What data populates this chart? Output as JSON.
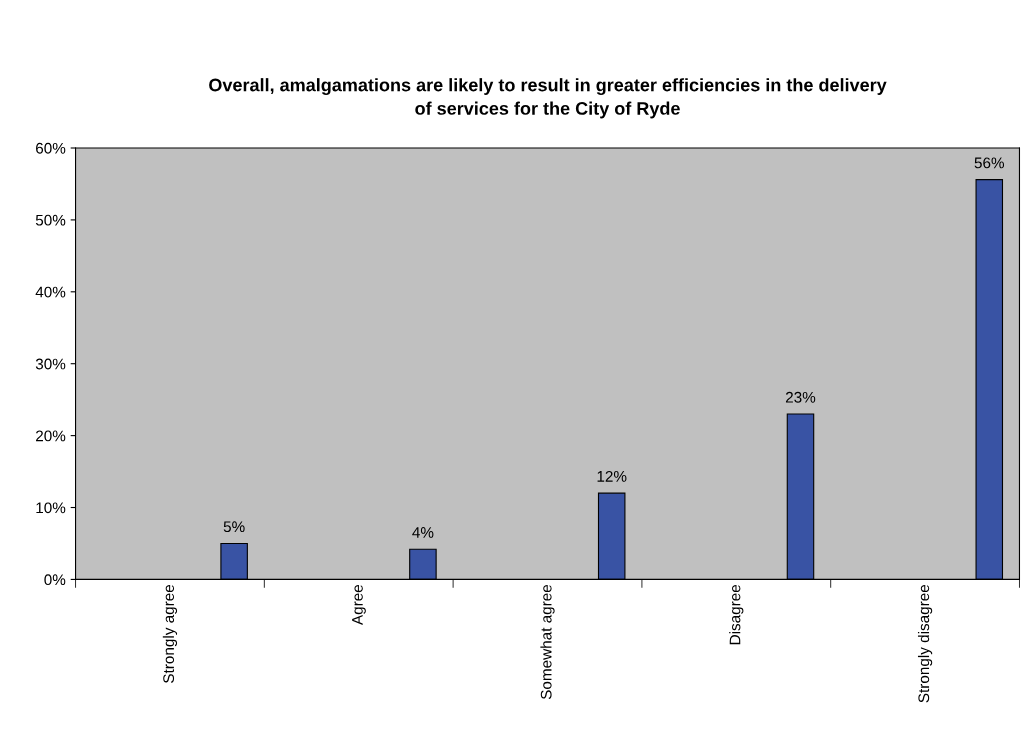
{
  "chart_data": {
    "type": "bar",
    "title": "Overall, amalgamations are likely to result in greater efficiencies in the delivery\nof services for the City of Ryde",
    "categories": [
      "Strongly agree",
      "Agree",
      "Somewhat agree",
      "Disagree",
      "Strongly disagree"
    ],
    "values": [
      5,
      4.2,
      12,
      23,
      55.6
    ],
    "value_labels": [
      "5%",
      "4%",
      "12%",
      "23%",
      "56%"
    ],
    "color": "#3953a4",
    "ylim": [
      0,
      60
    ],
    "yticks": [
      {
        "value": 0,
        "label": "0%"
      },
      {
        "value": 10,
        "label": "10%"
      },
      {
        "value": 20,
        "label": "20%"
      },
      {
        "value": 30,
        "label": "30%"
      },
      {
        "value": 40,
        "label": "40%"
      },
      {
        "value": 50,
        "label": "50%"
      },
      {
        "value": 60,
        "label": "60%"
      }
    ],
    "grid": false,
    "legend": false
  }
}
